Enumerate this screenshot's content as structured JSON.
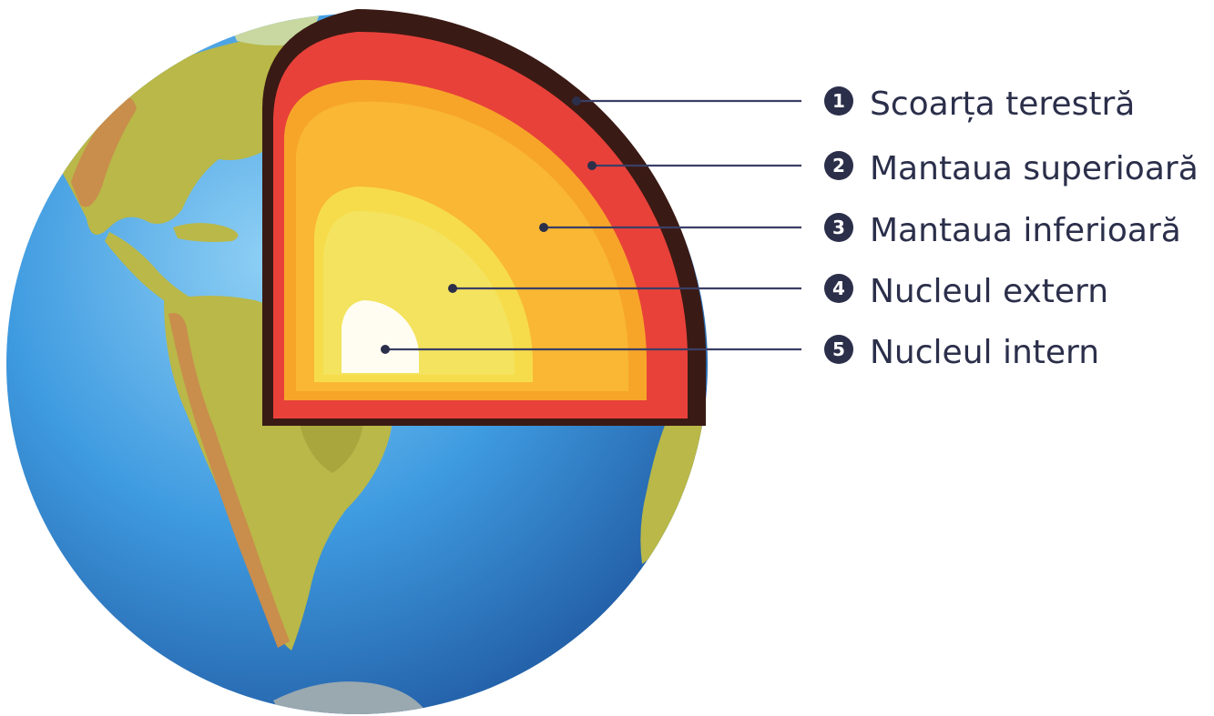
{
  "colors": {
    "ocean": "#3f9be0",
    "land": "#b9b848",
    "mountains": "#c98d4c",
    "crust": "#3a1a14",
    "upper_mantle": "#e8413a",
    "lower_mantle": "#f7a529",
    "outer_core": "#f6dc4a",
    "inner_core": "#fffdf2",
    "label_text": "#2b2f4a"
  },
  "layers": [
    {
      "number": "1",
      "label": "Scoarța terestră"
    },
    {
      "number": "2",
      "label": "Mantaua superioară"
    },
    {
      "number": "3",
      "label": "Mantaua inferioară"
    },
    {
      "number": "4",
      "label": "Nucleul extern"
    },
    {
      "number": "5",
      "label": "Nucleul intern"
    }
  ]
}
